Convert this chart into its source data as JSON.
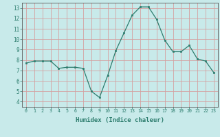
{
  "x": [
    0,
    1,
    2,
    3,
    4,
    5,
    6,
    7,
    8,
    9,
    10,
    11,
    12,
    13,
    14,
    15,
    16,
    17,
    18,
    19,
    20,
    21,
    22,
    23
  ],
  "y": [
    7.7,
    7.9,
    7.9,
    7.9,
    7.2,
    7.3,
    7.3,
    7.2,
    5.0,
    4.4,
    6.5,
    8.9,
    10.6,
    12.3,
    13.1,
    13.1,
    11.9,
    9.9,
    8.8,
    8.8,
    9.4,
    8.1,
    7.9,
    6.8
  ],
  "xlabel": "Humidex (Indice chaleur)",
  "ylim": [
    3.5,
    13.5
  ],
  "xlim": [
    -0.5,
    23.5
  ],
  "yticks": [
    4,
    5,
    6,
    7,
    8,
    9,
    10,
    11,
    12,
    13
  ],
  "xticks": [
    0,
    1,
    2,
    3,
    4,
    5,
    6,
    7,
    8,
    9,
    10,
    11,
    12,
    13,
    14,
    15,
    16,
    17,
    18,
    19,
    20,
    21,
    22,
    23
  ],
  "line_color": "#2d7d6e",
  "marker_color": "#2d7d6e",
  "bg_color": "#c8eaea",
  "grid_color": "#d4a0a0",
  "axis_color": "#555555",
  "xlabel_color": "#2d7d6e",
  "tick_color": "#2d7d6e"
}
